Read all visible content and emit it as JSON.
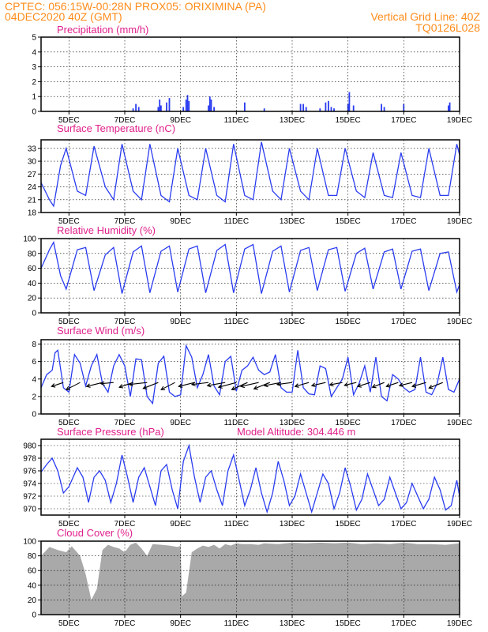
{
  "header": {
    "station_line": "CPTEC:   056:15W-00:28N   PROX05: ORIXIMINA (PA)",
    "date_line": "04DEC2020 40Z (GMT)",
    "grid_note": "Vertical Grid Line: 40Z",
    "run_id": "TQ0126L028"
  },
  "colors": {
    "header": "#ff8c1a",
    "panel_title": "#e0208c",
    "series": "#2a3cf0",
    "cloud": "#a9a9a9"
  },
  "x_axis": {
    "start_day": 4,
    "end_day": 19,
    "tick_days": [
      5,
      7,
      9,
      11,
      13,
      15,
      17,
      19
    ],
    "tick_labels": [
      "5DEC",
      "7DEC",
      "9DEC",
      "11DEC",
      "13DEC",
      "15DEC",
      "17DEC",
      "19DEC"
    ],
    "vertical_grid": true
  },
  "chart_data": [
    {
      "type": "bar",
      "id": "precip",
      "title": "Precipitation (mm/h)",
      "ylim": [
        0,
        5
      ],
      "yticks": [
        0,
        1,
        2,
        3,
        4,
        5
      ],
      "ytick_labels": [
        "0",
        "1",
        "2",
        "3",
        "4",
        "5"
      ],
      "x": [
        7.3,
        7.4,
        7.5,
        8.2,
        8.25,
        8.3,
        8.5,
        8.6,
        9.1,
        9.2,
        9.25,
        9.3,
        10.0,
        10.05,
        10.1,
        10.2,
        11.3,
        12.0,
        13.3,
        13.4,
        13.5,
        14.0,
        14.2,
        14.3,
        14.4,
        14.5,
        15.0,
        15.05,
        15.2,
        16.2,
        16.3,
        17.0,
        18.6,
        18.65
      ],
      "values": [
        0.2,
        0.5,
        0.3,
        0.3,
        0.8,
        0.4,
        0.6,
        0.9,
        0.3,
        0.8,
        1.1,
        0.7,
        0.4,
        1.0,
        0.8,
        0.3,
        0.6,
        0.2,
        0.5,
        0.5,
        0.3,
        0.2,
        0.6,
        0.7,
        0.3,
        0.2,
        0.5,
        1.3,
        0.4,
        0.5,
        0.3,
        0.5,
        0.4,
        0.6
      ]
    },
    {
      "type": "line",
      "id": "temperature",
      "title": "Surface Temperature (nC)",
      "ylim": [
        18,
        35
      ],
      "yticks": [
        18,
        21,
        24,
        27,
        30,
        33
      ],
      "ytick_labels": [
        "18",
        "21",
        "24",
        "27",
        "30",
        "33"
      ],
      "x": [
        4.0,
        4.3,
        4.45,
        4.7,
        4.9,
        5.3,
        5.6,
        5.9,
        6.3,
        6.6,
        6.9,
        7.3,
        7.6,
        7.9,
        8.3,
        8.6,
        8.9,
        9.3,
        9.6,
        9.9,
        10.3,
        10.6,
        10.9,
        11.3,
        11.6,
        11.9,
        12.3,
        12.6,
        12.9,
        13.3,
        13.6,
        13.9,
        14.3,
        14.6,
        14.9,
        15.3,
        15.6,
        15.9,
        16.3,
        16.6,
        16.9,
        17.3,
        17.6,
        17.9,
        18.3,
        18.6,
        18.9,
        19.0
      ],
      "series": [
        {
          "values": [
            25,
            21,
            19.5,
            29,
            33,
            23,
            22,
            33.5,
            24,
            21,
            34,
            23,
            21,
            34,
            22,
            20.5,
            33,
            22,
            21,
            33,
            22,
            20.5,
            34,
            22,
            21,
            34.5,
            23,
            21,
            33,
            23,
            21,
            33,
            22,
            22,
            33,
            23,
            21.5,
            32,
            22,
            21.5,
            32,
            22,
            21.5,
            33,
            22,
            22,
            34,
            31.5
          ]
        }
      ]
    },
    {
      "type": "line",
      "id": "humidity",
      "title": "Relative Humidity (%)",
      "ylim": [
        0,
        100
      ],
      "yticks": [
        0,
        20,
        40,
        60,
        80,
        100
      ],
      "ytick_labels": [
        "0",
        "20",
        "40",
        "60",
        "80",
        "100"
      ],
      "x": [
        4.0,
        4.3,
        4.45,
        4.7,
        4.9,
        5.3,
        5.6,
        5.9,
        6.3,
        6.6,
        6.9,
        7.3,
        7.6,
        7.9,
        8.3,
        8.6,
        8.9,
        9.3,
        9.6,
        9.9,
        10.3,
        10.6,
        10.9,
        11.3,
        11.6,
        11.9,
        12.3,
        12.6,
        12.9,
        13.3,
        13.6,
        13.9,
        14.3,
        14.6,
        14.9,
        15.3,
        15.6,
        15.9,
        16.3,
        16.6,
        16.9,
        17.3,
        17.6,
        17.9,
        18.3,
        18.6,
        18.9,
        19.0
      ],
      "series": [
        {
          "values": [
            60,
            85,
            95,
            50,
            32,
            85,
            88,
            30,
            78,
            88,
            26,
            82,
            90,
            27,
            83,
            90,
            28,
            86,
            90,
            27,
            84,
            92,
            27,
            86,
            92,
            26,
            83,
            90,
            28,
            84,
            88,
            30,
            85,
            88,
            29,
            80,
            87,
            32,
            82,
            86,
            32,
            83,
            86,
            30,
            80,
            82,
            28,
            38
          ]
        }
      ]
    },
    {
      "type": "line",
      "id": "wind",
      "title": "Surface Wind (m/s)",
      "ylim": [
        0,
        8.5
      ],
      "yticks": [
        0,
        2,
        4,
        6,
        8
      ],
      "ytick_labels": [
        "0",
        "2",
        "4",
        "6",
        "8"
      ],
      "x": [
        4.0,
        4.2,
        4.4,
        4.5,
        4.6,
        4.8,
        5.0,
        5.2,
        5.4,
        5.6,
        5.8,
        6.0,
        6.2,
        6.4,
        6.6,
        6.8,
        7.0,
        7.2,
        7.4,
        7.6,
        7.8,
        8.0,
        8.2,
        8.4,
        8.6,
        8.8,
        9.0,
        9.2,
        9.4,
        9.6,
        9.8,
        10.0,
        10.2,
        10.4,
        10.6,
        10.8,
        11.0,
        11.2,
        11.4,
        11.6,
        11.8,
        12.0,
        12.2,
        12.4,
        12.6,
        12.8,
        13.0,
        13.2,
        13.4,
        13.6,
        13.8,
        14.0,
        14.2,
        14.4,
        14.6,
        14.8,
        15.0,
        15.2,
        15.4,
        15.6,
        15.8,
        16.0,
        16.2,
        16.4,
        16.6,
        16.8,
        17.0,
        17.2,
        17.4,
        17.6,
        17.8,
        18.0,
        18.2,
        18.4,
        18.6,
        18.8,
        19.0
      ],
      "series": [
        {
          "values": [
            3.0,
            4.5,
            5.0,
            7.0,
            7.3,
            3.0,
            2.5,
            6.8,
            5.8,
            3.2,
            5.5,
            6.8,
            3.5,
            2.5,
            5.5,
            6.8,
            5.5,
            2.0,
            6.3,
            6.2,
            2.0,
            1.2,
            5.8,
            6.6,
            2.5,
            2.0,
            2.2,
            7.8,
            6.5,
            3.0,
            4.5,
            6.8,
            3.2,
            2.2,
            6.0,
            6.6,
            2.6,
            5.0,
            5.5,
            6.5,
            5.0,
            4.5,
            4.8,
            6.8,
            3.0,
            2.5,
            2.5,
            7.3,
            3.0,
            2.3,
            2.2,
            5.5,
            5.2,
            2.0,
            3.0,
            4.0,
            6.5,
            2.2,
            3.5,
            5.5,
            2.5,
            6.5,
            2.0,
            1.5,
            4.5,
            4.0,
            3.0,
            2.5,
            2.8,
            6.5,
            2.5,
            2.2,
            3.5,
            6.5,
            2.8,
            2.5,
            4.0
          ]
        }
      ],
      "wind_barbs": {
        "x": [
          4.8,
          5.4,
          6.2,
          6.6,
          7.3,
          7.8,
          8.2,
          8.8,
          9.5,
          10.0,
          10.6,
          11.0,
          11.4,
          11.8,
          12.2,
          12.6,
          13.0,
          13.6,
          14.2,
          14.8,
          15.3,
          15.8,
          16.3,
          16.8,
          17.3,
          17.8,
          18.4
        ],
        "u": [
          -3.0,
          -3.5,
          -4.0,
          -3.2,
          -3.5,
          -4.5,
          -3.8,
          -3.5,
          -4.0,
          -4.2,
          -4.5,
          -4.5,
          -4.0,
          -4.5,
          -4.0,
          -4.2,
          -3.8,
          -3.5,
          -3.5,
          -3.2,
          -3.0,
          -3.2,
          -3.0,
          -3.0,
          -3.2,
          -3.5,
          -3.5
        ],
        "v": [
          -1.0,
          -1.8,
          -1.0,
          -0.3,
          -1.2,
          -0.5,
          -1.5,
          -1.8,
          -1.0,
          -0.5,
          -0.8,
          -1.2,
          -1.8,
          -1.0,
          -1.6,
          -0.8,
          -0.5,
          -1.0,
          -0.8,
          -0.6,
          -0.7,
          -1.0,
          -1.2,
          -1.0,
          -0.8,
          -1.0,
          -1.4
        ],
        "y_level": 3.6
      }
    },
    {
      "type": "line",
      "id": "pressure",
      "title": "Surface Pressure (hPa)",
      "ylim": [
        969,
        981
      ],
      "yticks": [
        970,
        972,
        974,
        976,
        978,
        980
      ],
      "ytick_labels": [
        "970",
        "972",
        "974",
        "976",
        "978",
        "980"
      ],
      "annotation": "Model Altitude: 304.446 m",
      "x": [
        4.0,
        4.2,
        4.4,
        4.6,
        4.8,
        5.0,
        5.3,
        5.5,
        5.7,
        5.9,
        6.1,
        6.3,
        6.5,
        6.7,
        6.9,
        7.1,
        7.3,
        7.5,
        7.7,
        7.9,
        8.1,
        8.3,
        8.5,
        8.7,
        8.9,
        9.1,
        9.3,
        9.5,
        9.7,
        9.9,
        10.1,
        10.3,
        10.5,
        10.7,
        10.9,
        11.1,
        11.3,
        11.5,
        11.7,
        11.9,
        12.1,
        12.3,
        12.5,
        12.7,
        12.9,
        13.1,
        13.3,
        13.5,
        13.7,
        13.9,
        14.1,
        14.3,
        14.5,
        14.7,
        14.9,
        15.1,
        15.3,
        15.5,
        15.7,
        15.9,
        16.1,
        16.3,
        16.5,
        16.7,
        16.9,
        17.1,
        17.3,
        17.5,
        17.7,
        17.9,
        18.1,
        18.3,
        18.5,
        18.7,
        18.9,
        19.0
      ],
      "series": [
        {
          "values": [
            975.8,
            977.0,
            978.0,
            976.0,
            972.5,
            973.5,
            976.5,
            975.0,
            971.0,
            975.0,
            976.0,
            974.5,
            971.0,
            974.0,
            978.5,
            975.0,
            971.0,
            975.0,
            976.5,
            973.5,
            970.5,
            976.0,
            977.0,
            973.0,
            970.0,
            977.5,
            980.0,
            975.0,
            971.0,
            975.0,
            976.0,
            973.0,
            970.5,
            976.0,
            978.5,
            974.5,
            970.5,
            973.0,
            976.5,
            972.5,
            969.5,
            972.5,
            977.5,
            974.5,
            970.5,
            972.0,
            975.5,
            972.5,
            969.5,
            972.5,
            975.5,
            974.0,
            970.0,
            972.5,
            976.5,
            973.5,
            969.8,
            971.5,
            975.5,
            973.0,
            970.5,
            971.5,
            975.0,
            972.5,
            970.0,
            971.0,
            974.0,
            972.0,
            970.0,
            971.5,
            975.0,
            973.0,
            969.8,
            970.5,
            974.5,
            972.0
          ]
        }
      ]
    },
    {
      "type": "area",
      "id": "cloud",
      "title": "Cloud Cover (%)",
      "ylim": [
        0,
        100
      ],
      "yticks": [
        0,
        20,
        40,
        60,
        80,
        100
      ],
      "ytick_labels": [
        "0",
        "20",
        "40",
        "60",
        "80",
        "100"
      ],
      "x": [
        4.0,
        4.3,
        4.6,
        4.9,
        5.1,
        5.4,
        5.6,
        5.8,
        6.0,
        6.2,
        6.4,
        6.6,
        6.8,
        7.0,
        7.2,
        7.4,
        7.6,
        7.8,
        8.0,
        8.3,
        8.6,
        8.9,
        9.0,
        9.05,
        9.2,
        9.4,
        9.6,
        9.8,
        10.0,
        10.2,
        10.4,
        10.6,
        10.8,
        11.0,
        11.2,
        11.5,
        11.8,
        12.0,
        12.5,
        13.0,
        13.5,
        14.0,
        14.5,
        15.0,
        15.5,
        16.0,
        16.5,
        17.0,
        17.5,
        18.0,
        18.5,
        19.0
      ],
      "series": [
        {
          "values": [
            80,
            92,
            88,
            85,
            93,
            80,
            55,
            20,
            35,
            88,
            95,
            92,
            90,
            85,
            95,
            98,
            90,
            80,
            96,
            95,
            94,
            92,
            94,
            25,
            30,
            85,
            90,
            94,
            92,
            95,
            90,
            96,
            94,
            97,
            96,
            96,
            95,
            97,
            96,
            98,
            97,
            98,
            97,
            98,
            96,
            97,
            96,
            98,
            96,
            96,
            95,
            97
          ]
        }
      ]
    }
  ]
}
